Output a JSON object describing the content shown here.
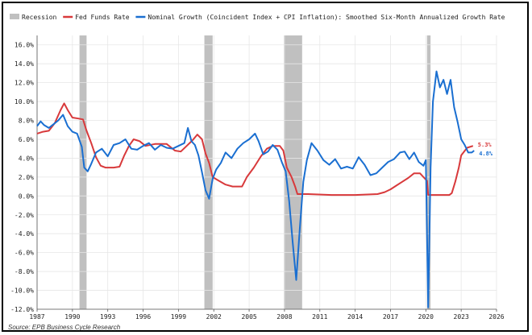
{
  "chart_data": {
    "type": "line",
    "title": "",
    "xlabel": "",
    "ylabel": "",
    "xlim": [
      1987,
      2026
    ],
    "ylim": [
      -12,
      17
    ],
    "x_ticks": [
      1987,
      1990,
      1993,
      1996,
      1999,
      2002,
      2005,
      2008,
      2011,
      2014,
      2017,
      2020,
      2023,
      2026
    ],
    "x_tick_labels": [
      "1987",
      "1990",
      "1993",
      "1996",
      "1999",
      "2002",
      "2005",
      "2008",
      "2011",
      "2014",
      "2017",
      "2020",
      "2023",
      "2026"
    ],
    "y_ticks": [
      -12,
      -10,
      -8,
      -6,
      -4,
      -2,
      0,
      2,
      4,
      6,
      8,
      10,
      12,
      14,
      16
    ],
    "y_tick_labels": [
      "-12.0%",
      "-10.0%",
      "-8.0%",
      "-6.0%",
      "-4.0%",
      "-2.0%",
      "0.0%",
      "2.0%",
      "4.0%",
      "6.0%",
      "8.0%",
      "10.0%",
      "12.0%",
      "14.0%",
      "16.0%"
    ],
    "grid": true,
    "legend_position": "top",
    "legend": [
      {
        "label": "Recession",
        "color": "#c0c0c0",
        "kind": "patch"
      },
      {
        "label": "Fed Funds Rate",
        "color": "#d8393b",
        "kind": "line"
      },
      {
        "label": "Nominal Growth (Coincident Index + CPI Inflation): Smoothed Six-Month Annualized Growth Rate",
        "color": "#1a6fd1",
        "kind": "line"
      }
    ],
    "recessions": [
      [
        1990.6,
        1991.2
      ],
      [
        2001.2,
        2001.9
      ],
      [
        2007.95,
        2009.5
      ],
      [
        2020.1,
        2020.4
      ]
    ],
    "series": [
      {
        "name": "Fed Funds Rate",
        "color": "#d8393b",
        "x": [
          1987.0,
          1987.5,
          1988.0,
          1988.5,
          1989.0,
          1989.3,
          1989.6,
          1990.0,
          1990.5,
          1990.9,
          1991.2,
          1991.6,
          1992.0,
          1992.4,
          1992.8,
          1993.5,
          1994.0,
          1994.4,
          1994.8,
          1995.2,
          1995.7,
          1996.2,
          1997.0,
          1998.0,
          1998.7,
          1999.2,
          1999.7,
          2000.2,
          2000.6,
          2001.0,
          2001.3,
          2001.6,
          2001.9,
          2002.3,
          2003.0,
          2003.6,
          2004.4,
          2004.8,
          2005.4,
          2006.0,
          2006.5,
          2007.0,
          2007.6,
          2007.9,
          2008.2,
          2008.6,
          2008.9,
          2009.1,
          2010.0,
          2012.0,
          2014.0,
          2015.9,
          2016.5,
          2017.0,
          2017.5,
          2018.0,
          2018.5,
          2019.0,
          2019.5,
          2019.8,
          2020.1,
          2020.2,
          2021.0,
          2022.0,
          2022.2,
          2022.5,
          2022.8,
          2023.0,
          2023.5,
          2024.0
        ],
        "y": [
          6.6,
          6.8,
          6.9,
          7.7,
          9.1,
          9.8,
          9.1,
          8.3,
          8.2,
          8.1,
          6.9,
          5.6,
          4.1,
          3.2,
          3.0,
          3.0,
          3.1,
          4.3,
          5.3,
          6.0,
          5.8,
          5.3,
          5.5,
          5.5,
          4.8,
          4.7,
          5.3,
          5.9,
          6.5,
          6.0,
          4.5,
          3.5,
          2.0,
          1.7,
          1.2,
          1.0,
          1.0,
          2.0,
          3.0,
          4.2,
          5.0,
          5.3,
          5.3,
          4.8,
          3.0,
          2.0,
          1.0,
          0.2,
          0.2,
          0.1,
          0.1,
          0.2,
          0.4,
          0.7,
          1.1,
          1.5,
          1.9,
          2.4,
          2.4,
          2.0,
          1.6,
          0.1,
          0.1,
          0.1,
          0.3,
          1.5,
          3.0,
          4.3,
          5.1,
          5.3
        ]
      },
      {
        "name": "Nominal Growth (Coincident Index + CPI Inflation): Smoothed Six-Month Annualized Growth Rate",
        "color": "#1a6fd1",
        "x": [
          1987.0,
          1987.3,
          1987.6,
          1988.0,
          1988.4,
          1988.8,
          1989.2,
          1989.6,
          1990.0,
          1990.4,
          1990.8,
          1991.0,
          1991.3,
          1991.6,
          1992.0,
          1992.5,
          1993.0,
          1993.5,
          1994.0,
          1994.5,
          1995.0,
          1995.5,
          1996.0,
          1996.5,
          1997.0,
          1997.5,
          1998.0,
          1998.5,
          1999.0,
          1999.5,
          1999.8,
          2000.1,
          2000.4,
          2000.7,
          2001.0,
          2001.3,
          2001.6,
          2001.9,
          2002.2,
          2002.6,
          2003.0,
          2003.5,
          2004.0,
          2004.5,
          2005.0,
          2005.5,
          2005.8,
          2006.2,
          2006.6,
          2007.0,
          2007.4,
          2007.8,
          2008.1,
          2008.4,
          2008.7,
          2009.0,
          2009.3,
          2009.6,
          2009.9,
          2010.3,
          2010.8,
          2011.3,
          2011.8,
          2012.3,
          2012.8,
          2013.3,
          2013.8,
          2014.3,
          2014.8,
          2015.3,
          2015.8,
          2016.3,
          2016.8,
          2017.3,
          2017.8,
          2018.2,
          2018.6,
          2019.0,
          2019.4,
          2019.8,
          2020.0,
          2020.2,
          2020.4,
          2020.6,
          2020.9,
          2021.2,
          2021.5,
          2021.8,
          2022.1,
          2022.4,
          2022.7,
          2023.0,
          2023.3,
          2023.6,
          2023.9,
          2024.1
        ],
        "y": [
          7.4,
          7.9,
          7.5,
          7.2,
          7.6,
          8.0,
          8.6,
          7.4,
          6.8,
          6.6,
          5.2,
          3.0,
          2.6,
          3.4,
          4.6,
          5.0,
          4.2,
          5.4,
          5.6,
          6.0,
          5.0,
          4.9,
          5.3,
          5.6,
          4.9,
          5.4,
          5.1,
          5.0,
          5.3,
          5.6,
          7.2,
          5.8,
          5.4,
          4.3,
          2.5,
          0.6,
          -0.3,
          1.8,
          2.8,
          3.5,
          4.6,
          4.0,
          5.0,
          5.6,
          6.0,
          6.6,
          5.8,
          4.4,
          4.7,
          5.4,
          4.9,
          3.5,
          2.6,
          -0.6,
          -5.0,
          -8.9,
          -3.5,
          1.5,
          3.8,
          5.6,
          4.8,
          3.8,
          3.3,
          3.9,
          2.9,
          3.1,
          2.9,
          4.1,
          3.3,
          2.2,
          2.4,
          3.0,
          3.6,
          3.9,
          4.6,
          4.7,
          3.9,
          4.6,
          3.6,
          3.2,
          3.8,
          -11.8,
          3.0,
          10.0,
          13.2,
          11.5,
          12.3,
          10.8,
          12.3,
          9.4,
          7.8,
          6.0,
          5.4,
          4.6,
          4.6,
          4.8
        ]
      }
    ],
    "end_labels": [
      {
        "text": "5.3%",
        "color": "#d8393b"
      },
      {
        "text": "4.8%",
        "color": "#1a6fd1"
      }
    ]
  },
  "source": "Source: EPB Business Cycle Research"
}
